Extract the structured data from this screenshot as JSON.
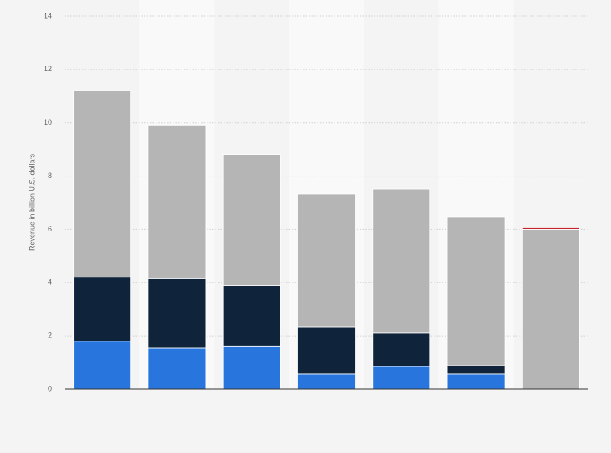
{
  "chart_data": {
    "type": "stacked-bar",
    "y_label": "Revenue in billion U.S. dollars",
    "categories": [
      null,
      null,
      null,
      null,
      null,
      null,
      null
    ],
    "series": [
      {
        "color": "#2876dd",
        "values": [
          1.8,
          1.55,
          1.6,
          0.58,
          0.85,
          0.58,
          null
        ]
      },
      {
        "color": "#0f243b",
        "values": [
          2.4,
          2.6,
          2.3,
          1.76,
          1.25,
          0.3,
          null
        ]
      },
      {
        "color": "#b5b5b5",
        "values": [
          7.0,
          5.74,
          4.92,
          4.98,
          5.4,
          5.59,
          6.0
        ]
      },
      {
        "color": "#c0262c",
        "values": [
          null,
          null,
          null,
          null,
          null,
          null,
          0.06
        ]
      }
    ],
    "ylim": [
      0,
      14
    ],
    "yticks": [
      0,
      2,
      4,
      6,
      8,
      10,
      12,
      14
    ],
    "grid": true
  }
}
